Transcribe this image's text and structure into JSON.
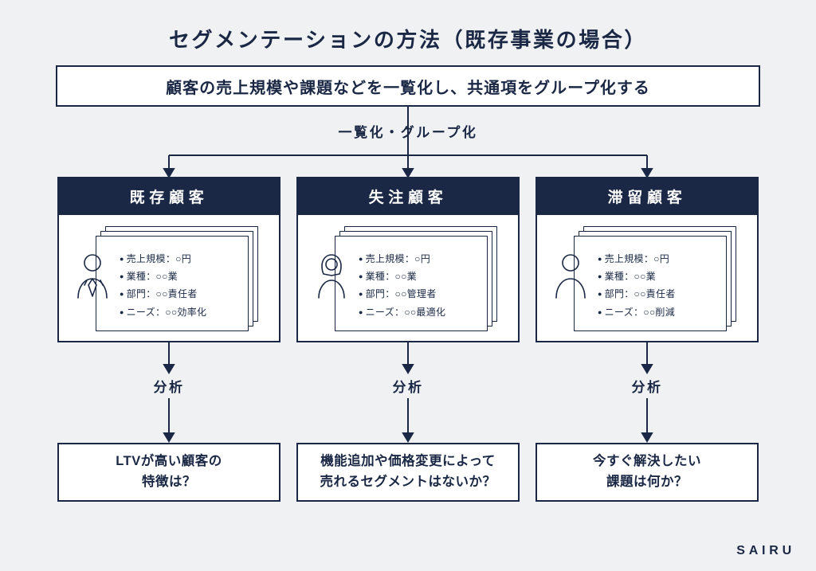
{
  "colors": {
    "ink": "#1a2845",
    "bg": "#f0f1f2",
    "paper": "#ffffff"
  },
  "title": "セグメンテーションの方法（既存事業の場合）",
  "top_box": "顧客の売上規模や課題などを一覧化し、共通項をグループ化する",
  "mid_label": "一覧化・グループ化",
  "analyze_label": "分析",
  "brand": "SAIRU",
  "columns": [
    {
      "header": "既存顧客",
      "avatar": "suit",
      "bullets": [
        "売上規模：○円",
        "業種：○○業",
        "部門：○○責任者",
        "ニーズ：○○効率化"
      ],
      "question": "LTVが高い顧客の\n特徴は？"
    },
    {
      "header": "失注顧客",
      "avatar": "woman",
      "bullets": [
        "売上規模：○円",
        "業種：○○業",
        "部門：○○管理者",
        "ニーズ：○○最適化"
      ],
      "question": "機能追加や価格変更によって\n売れるセグメントはないか？"
    },
    {
      "header": "滞留顧客",
      "avatar": "plain",
      "bullets": [
        "売上規模：○円",
        "業種：○○業",
        "部門：○○責任者",
        "ニーズ：○○削減"
      ],
      "question": "今すぐ解決したい\n課題は何か？"
    }
  ],
  "arrow": {
    "stroke": "#1a2845",
    "width": 2,
    "head": 6
  }
}
